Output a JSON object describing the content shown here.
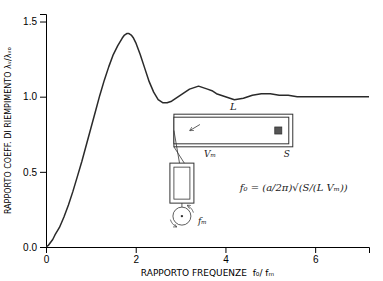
{
  "chart_data": {
    "type": "line",
    "xlabel": "RAPPORTO FREQUENZE  f₀/ fₘ",
    "ylabel": "RAPPORTO COEFF. DI RIEMPIMENTO λᵥ/λᵥₒ",
    "xlim": [
      0,
      7.2
    ],
    "ylim": [
      0,
      1.55
    ],
    "xticks": [
      0,
      2,
      4,
      6
    ],
    "yticks": [
      {
        "value": 0,
        "label": "0.0"
      },
      0.5,
      {
        "value": 1.0,
        "label": "1.0"
      },
      1.5
    ],
    "grid": false,
    "color": "#2a2a2a",
    "x": [
      0.0,
      0.05,
      0.1,
      0.15,
      0.2,
      0.3,
      0.4,
      0.5,
      0.6,
      0.7,
      0.8,
      0.9,
      1.0,
      1.1,
      1.2,
      1.3,
      1.4,
      1.5,
      1.6,
      1.7,
      1.75,
      1.8,
      1.85,
      1.9,
      1.95,
      2.0,
      2.1,
      2.2,
      2.3,
      2.4,
      2.5,
      2.6,
      2.7,
      2.8,
      2.9,
      3.0,
      3.1,
      3.2,
      3.3,
      3.4,
      3.5,
      3.6,
      3.7,
      3.8,
      3.9,
      4.0,
      4.2,
      4.4,
      4.6,
      4.8,
      5.0,
      5.2,
      5.4,
      5.6,
      5.8,
      6.0,
      6.5,
      7.0,
      7.2
    ],
    "values": [
      0.0,
      0.01,
      0.03,
      0.05,
      0.08,
      0.13,
      0.2,
      0.28,
      0.37,
      0.47,
      0.57,
      0.68,
      0.79,
      0.9,
      1.01,
      1.11,
      1.2,
      1.28,
      1.34,
      1.39,
      1.41,
      1.42,
      1.42,
      1.41,
      1.39,
      1.36,
      1.28,
      1.19,
      1.1,
      1.03,
      0.98,
      0.96,
      0.96,
      0.97,
      0.99,
      1.01,
      1.03,
      1.05,
      1.06,
      1.07,
      1.06,
      1.05,
      1.04,
      1.02,
      1.01,
      1.0,
      0.98,
      0.99,
      1.01,
      1.02,
      1.02,
      1.01,
      1.01,
      1.0,
      1.0,
      1.0,
      1.0,
      1.0,
      1.0
    ],
    "annotations": [
      {
        "text": "L"
      },
      {
        "text": "Vₘ"
      },
      {
        "text": "S"
      },
      {
        "text": "fₘ"
      },
      {
        "text": "f₀ = (a/2π)√(S/(L Vₘ))"
      }
    ]
  }
}
